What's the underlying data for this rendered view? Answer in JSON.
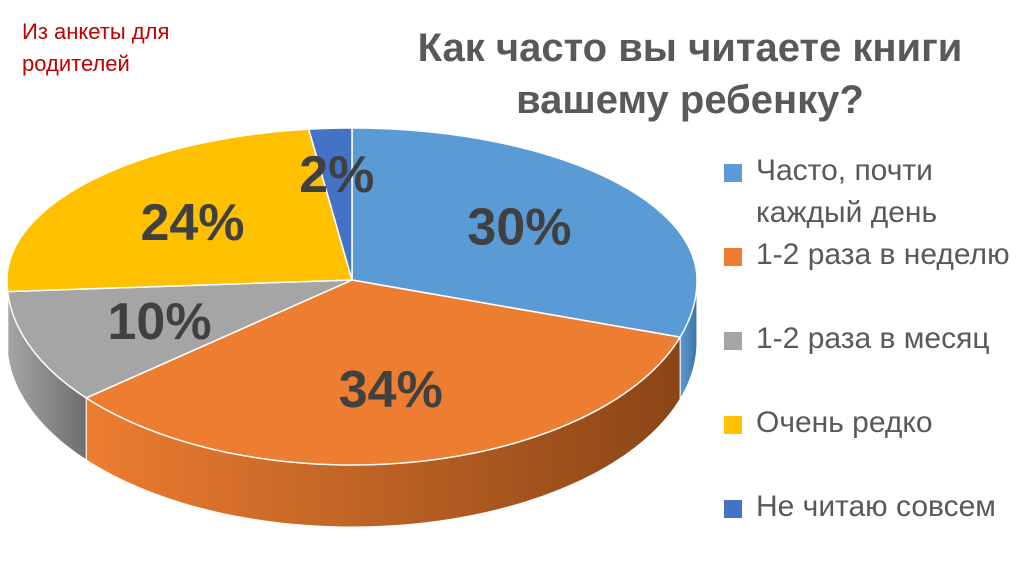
{
  "note": "Из анкеты для родителей",
  "chart_data": {
    "type": "pie",
    "style": "3d",
    "title": "Как часто вы читаете книги вашему  ребенку?",
    "categories": [
      "Часто, почти каждый день",
      "1-2 раза в неделю",
      "1-2 раза в месяц",
      "Очень редко",
      "Не читаю совсем"
    ],
    "values": [
      30,
      34,
      10,
      24,
      2
    ],
    "data_labels": [
      "30%",
      "34%",
      "10%",
      "24%",
      "2%"
    ],
    "colors": [
      "#5B9BD5",
      "#ED7D31",
      "#A5A5A5",
      "#FFC000",
      "#4472C4"
    ],
    "side_colors": [
      "#3F73A3",
      "#8A4516",
      "#6E6E6E",
      "#B38600",
      "#2F5597"
    ],
    "legend_placement": "right"
  }
}
